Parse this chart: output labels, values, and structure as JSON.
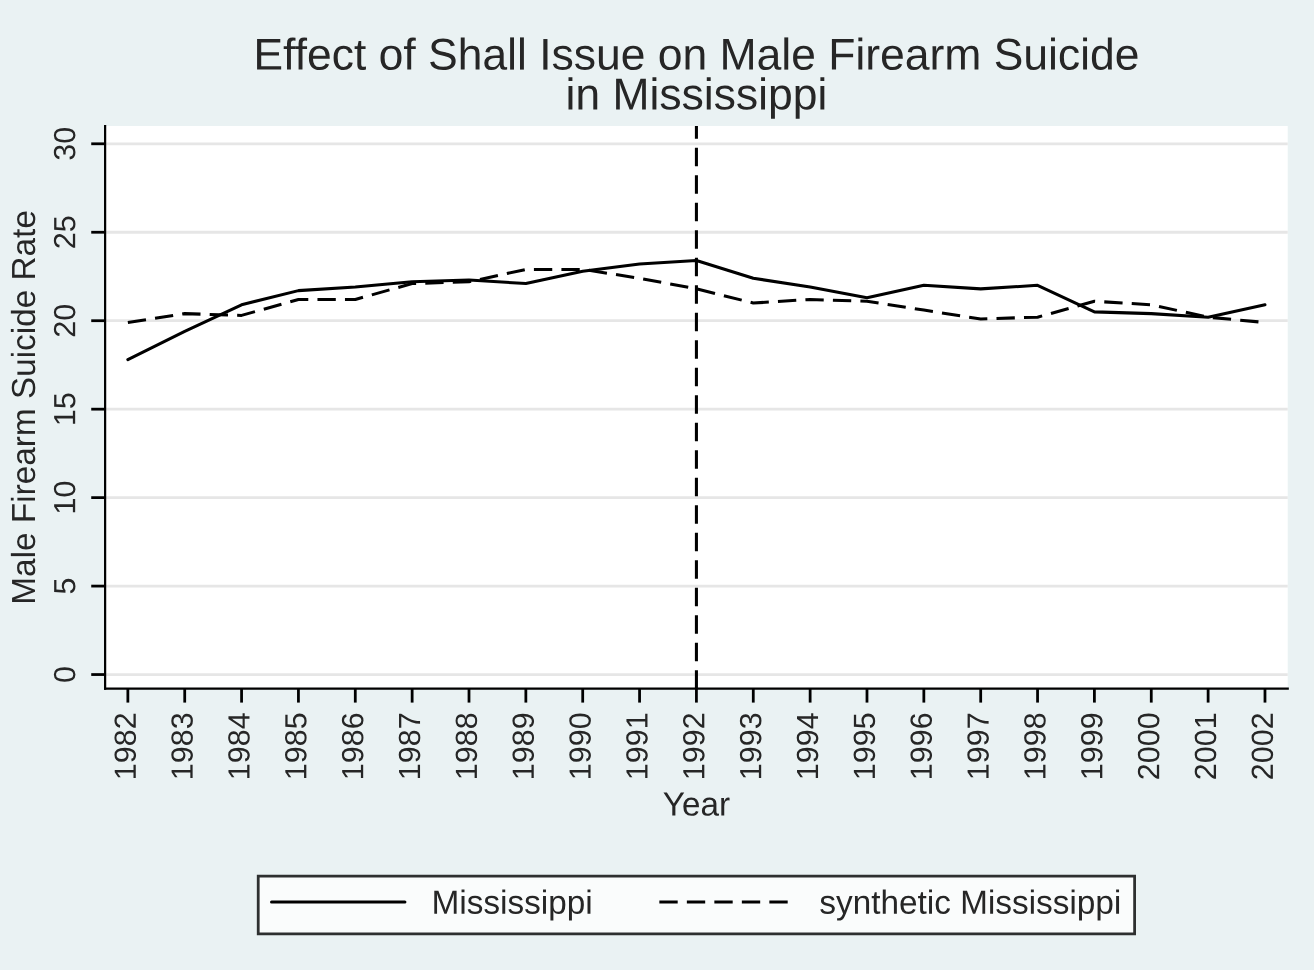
{
  "chart_data": {
    "type": "line",
    "title": "Effect of Shall Issue on Male Firearm Suicide\nin Mississippi",
    "xlabel": "Year",
    "ylabel": "Male Firearm Suicide Rate",
    "x": [
      1982,
      1983,
      1984,
      1985,
      1986,
      1987,
      1988,
      1989,
      1990,
      1991,
      1992,
      1993,
      1994,
      1995,
      1996,
      1997,
      1998,
      1999,
      2000,
      2001,
      2002
    ],
    "series": [
      {
        "name": "Mississippi",
        "color": "#000000",
        "line_style": "solid",
        "values": [
          17.8,
          19.4,
          20.9,
          21.7,
          21.9,
          22.2,
          22.3,
          22.1,
          22.8,
          23.2,
          23.4,
          22.4,
          21.9,
          21.3,
          22.0,
          21.8,
          22.0,
          20.5,
          20.4,
          20.2,
          20.9
        ]
      },
      {
        "name": "synthetic Mississippi",
        "color": "#000000",
        "line_style": "dashed",
        "values": [
          19.9,
          20.4,
          20.3,
          21.2,
          21.2,
          22.1,
          22.2,
          22.9,
          22.9,
          22.4,
          21.8,
          21.0,
          21.2,
          21.1,
          20.6,
          20.1,
          20.2,
          21.1,
          20.9,
          20.2,
          19.9
        ]
      }
    ],
    "xlim": [
      1981.6,
      2002.4
    ],
    "xticks": [
      1982,
      1983,
      1984,
      1985,
      1986,
      1987,
      1988,
      1989,
      1990,
      1991,
      1992,
      1993,
      1994,
      1995,
      1996,
      1997,
      1998,
      1999,
      2000,
      2001,
      2002
    ],
    "ylim": [
      -0.8,
      31
    ],
    "yticks": [
      0,
      5,
      10,
      15,
      20,
      25,
      30
    ],
    "ref_lines": [
      {
        "axis": "x",
        "value": 1992,
        "color": "#000000",
        "line_style": "dashed"
      }
    ],
    "grid": "y",
    "legend": "bottom",
    "marker": "none"
  }
}
